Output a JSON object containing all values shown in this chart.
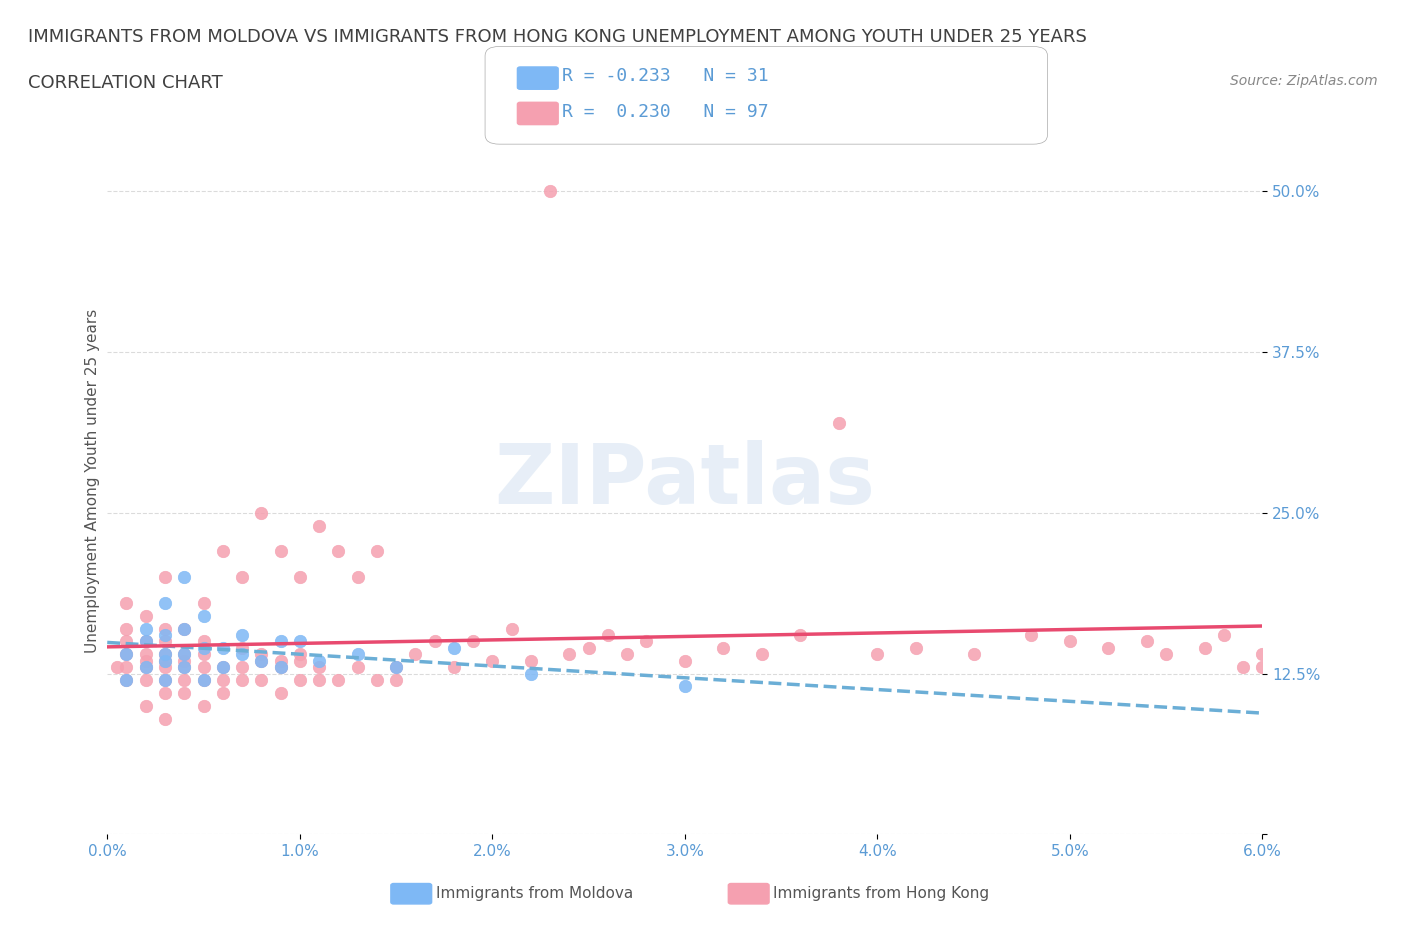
{
  "title_line1": "IMMIGRANTS FROM MOLDOVA VS IMMIGRANTS FROM HONG KONG UNEMPLOYMENT AMONG YOUTH UNDER 25 YEARS",
  "title_line2": "CORRELATION CHART",
  "source": "Source: ZipAtlas.com",
  "xlabel": "",
  "ylabel": "Unemployment Among Youth under 25 years",
  "xlim": [
    0.0,
    0.06
  ],
  "ylim": [
    0.0,
    0.55
  ],
  "yticks": [
    0.0,
    0.125,
    0.25,
    0.375,
    0.5
  ],
  "ytick_labels": [
    "",
    "12.5%",
    "25.0%",
    "37.5%",
    "50.0%"
  ],
  "xticks": [
    0.0,
    0.01,
    0.02,
    0.03,
    0.04,
    0.05,
    0.06
  ],
  "xtick_labels": [
    "0.0%",
    "1.0%",
    "2.0%",
    "3.0%",
    "4.0%",
    "5.0%",
    "6.0%"
  ],
  "moldova_color": "#7eb8f5",
  "moldova_edge": "#7eb8f5",
  "hk_color": "#f5a0b0",
  "hk_edge": "#f5a0b0",
  "trend_moldova_color": "#6baed6",
  "trend_hk_color": "#e84a6f",
  "moldova_R": -0.233,
  "moldova_N": 31,
  "hk_R": 0.23,
  "hk_N": 97,
  "legend_label_moldova": "Immigrants from Moldova",
  "legend_label_hk": "Immigrants from Hong Kong",
  "watermark": "ZIPatlas",
  "grid_color": "#cccccc",
  "background_color": "#ffffff",
  "title_color": "#404040",
  "axis_label_color": "#5b9bd5",
  "tick_label_color": "#5b9bd5",
  "legend_R_color": "#5b9bd5",
  "moldova_scatter": {
    "x": [
      0.001,
      0.001,
      0.002,
      0.002,
      0.002,
      0.003,
      0.003,
      0.003,
      0.003,
      0.003,
      0.004,
      0.004,
      0.004,
      0.004,
      0.005,
      0.005,
      0.005,
      0.006,
      0.006,
      0.007,
      0.007,
      0.008,
      0.009,
      0.009,
      0.01,
      0.011,
      0.013,
      0.015,
      0.018,
      0.022,
      0.03
    ],
    "y": [
      0.12,
      0.14,
      0.13,
      0.15,
      0.16,
      0.12,
      0.135,
      0.14,
      0.155,
      0.18,
      0.13,
      0.14,
      0.16,
      0.2,
      0.12,
      0.145,
      0.17,
      0.13,
      0.145,
      0.14,
      0.155,
      0.135,
      0.13,
      0.15,
      0.15,
      0.135,
      0.14,
      0.13,
      0.145,
      0.125,
      0.115
    ]
  },
  "hk_scatter": {
    "x": [
      0.0005,
      0.001,
      0.001,
      0.001,
      0.001,
      0.001,
      0.001,
      0.002,
      0.002,
      0.002,
      0.002,
      0.002,
      0.002,
      0.002,
      0.003,
      0.003,
      0.003,
      0.003,
      0.003,
      0.003,
      0.003,
      0.003,
      0.003,
      0.004,
      0.004,
      0.004,
      0.004,
      0.004,
      0.004,
      0.005,
      0.005,
      0.005,
      0.005,
      0.005,
      0.005,
      0.006,
      0.006,
      0.006,
      0.006,
      0.007,
      0.007,
      0.007,
      0.007,
      0.008,
      0.008,
      0.008,
      0.008,
      0.009,
      0.009,
      0.009,
      0.009,
      0.01,
      0.01,
      0.01,
      0.01,
      0.011,
      0.011,
      0.011,
      0.012,
      0.012,
      0.013,
      0.013,
      0.014,
      0.014,
      0.015,
      0.015,
      0.016,
      0.017,
      0.018,
      0.019,
      0.02,
      0.021,
      0.022,
      0.023,
      0.024,
      0.025,
      0.026,
      0.027,
      0.028,
      0.03,
      0.032,
      0.034,
      0.036,
      0.038,
      0.04,
      0.042,
      0.045,
      0.048,
      0.05,
      0.052,
      0.054,
      0.055,
      0.057,
      0.058,
      0.059,
      0.06,
      0.06
    ],
    "y": [
      0.13,
      0.12,
      0.13,
      0.14,
      0.15,
      0.16,
      0.18,
      0.1,
      0.12,
      0.13,
      0.135,
      0.14,
      0.15,
      0.17,
      0.09,
      0.11,
      0.12,
      0.13,
      0.135,
      0.14,
      0.15,
      0.16,
      0.2,
      0.11,
      0.12,
      0.13,
      0.135,
      0.14,
      0.16,
      0.1,
      0.12,
      0.13,
      0.14,
      0.15,
      0.18,
      0.11,
      0.12,
      0.13,
      0.22,
      0.12,
      0.13,
      0.145,
      0.2,
      0.12,
      0.135,
      0.14,
      0.25,
      0.11,
      0.13,
      0.135,
      0.22,
      0.12,
      0.135,
      0.14,
      0.2,
      0.12,
      0.13,
      0.24,
      0.12,
      0.22,
      0.13,
      0.2,
      0.12,
      0.22,
      0.12,
      0.13,
      0.14,
      0.15,
      0.13,
      0.15,
      0.135,
      0.16,
      0.135,
      0.5,
      0.14,
      0.145,
      0.155,
      0.14,
      0.15,
      0.135,
      0.145,
      0.14,
      0.155,
      0.32,
      0.14,
      0.145,
      0.14,
      0.155,
      0.15,
      0.145,
      0.15,
      0.14,
      0.145,
      0.155,
      0.13,
      0.14,
      0.13
    ]
  }
}
